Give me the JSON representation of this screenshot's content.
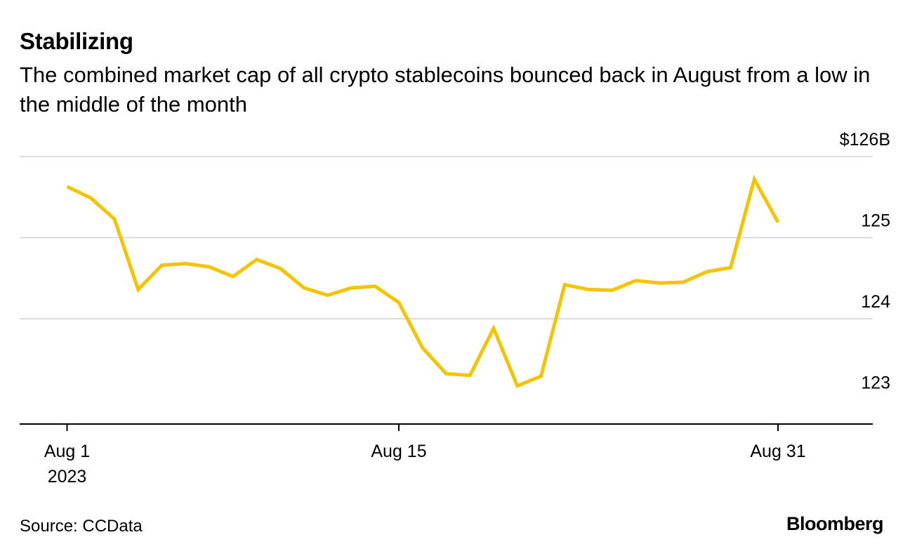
{
  "header": {
    "title": "Stabilizing",
    "subtitle": "The combined market cap of all crypto stablecoins bounced back in August from a low in the middle of the month"
  },
  "footer": {
    "source": "Source: CCData",
    "brand": "Bloomberg"
  },
  "chart_data": {
    "type": "line",
    "title": "Stabilizing",
    "subtitle": "The combined market cap of all crypto stablecoins bounced back in August from a low in the middle of the month",
    "xlabel": "",
    "ylabel": "",
    "x_tick_labels": [
      "Aug 1 2023",
      "Aug 15",
      "Aug 31"
    ],
    "y_tick_labels": [
      "$126B",
      "125",
      "124",
      "123"
    ],
    "y_ticks": [
      126,
      125,
      124,
      123
    ],
    "ylim": [
      122.7,
      126.2
    ],
    "xlim": [
      "2023-07-30",
      "2023-09-04"
    ],
    "grid": true,
    "y_axis_position": "right",
    "series_color": "#f5c400",
    "x": [
      "2023-08-01",
      "2023-08-02",
      "2023-08-03",
      "2023-08-04",
      "2023-08-05",
      "2023-08-06",
      "2023-08-07",
      "2023-08-08",
      "2023-08-09",
      "2023-08-10",
      "2023-08-11",
      "2023-08-12",
      "2023-08-13",
      "2023-08-14",
      "2023-08-15",
      "2023-08-16",
      "2023-08-17",
      "2023-08-18",
      "2023-08-19",
      "2023-08-20",
      "2023-08-21",
      "2023-08-22",
      "2023-08-23",
      "2023-08-24",
      "2023-08-25",
      "2023-08-26",
      "2023-08-27",
      "2023-08-28",
      "2023-08-29",
      "2023-08-30",
      "2023-08-31"
    ],
    "series": [
      {
        "values": [
          125.63,
          125.49,
          125.23,
          124.36,
          124.66,
          124.68,
          124.64,
          124.52,
          124.73,
          124.62,
          124.38,
          124.29,
          124.38,
          124.4,
          124.2,
          123.64,
          123.32,
          123.3,
          123.88,
          123.17,
          123.29,
          124.42,
          124.36,
          124.35,
          124.47,
          124.44,
          124.45,
          124.58,
          124.63,
          125.72,
          125.19
        ]
      }
    ]
  }
}
